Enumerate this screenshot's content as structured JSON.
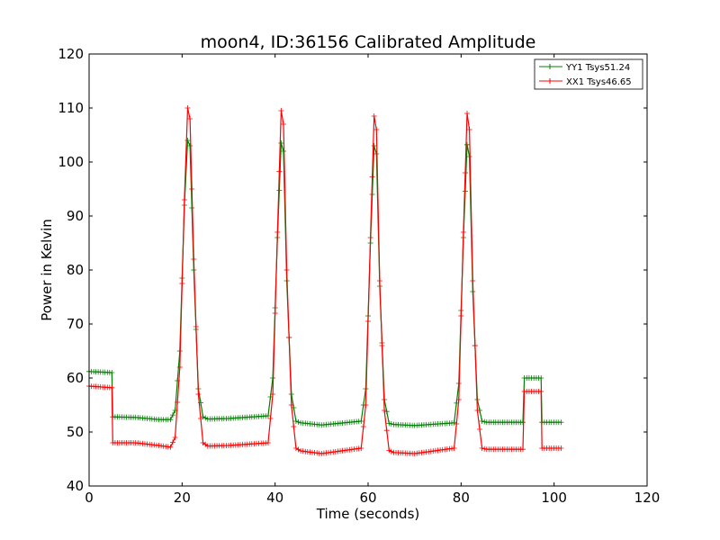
{
  "chart_data": {
    "type": "line",
    "title": "moon4, ID:36156 Calibrated Amplitude",
    "xlabel": "Time (seconds)",
    "ylabel": "Power in Kelvin",
    "xlim": [
      0,
      120
    ],
    "ylim": [
      40,
      120
    ],
    "xticks": [
      "0",
      "20",
      "40",
      "60",
      "80",
      "100",
      "120"
    ],
    "yticks": [
      "40",
      "50",
      "60",
      "70",
      "80",
      "90",
      "100",
      "110",
      "120"
    ],
    "grid": false,
    "legend": "top-right",
    "series": [
      {
        "name": "YY1 Tsys51.24",
        "color": "#008000",
        "x": [
          0,
          4.9,
          5.1,
          10,
          15,
          17.5,
          18.5,
          19.5,
          20.5,
          21.2,
          21.7,
          22.5,
          23.5,
          24.5,
          25.5,
          30,
          38.5,
          39.5,
          40.5,
          41.3,
          41.8,
          42.5,
          43.5,
          44.5,
          45.5,
          50,
          58.5,
          59.5,
          60.5,
          61.3,
          61.8,
          62.5,
          63.5,
          64.5,
          65.5,
          70,
          78.5,
          79.5,
          80.5,
          81.3,
          81.8,
          82.5,
          83.5,
          84.5,
          85.5,
          93.3,
          93.6,
          97.2,
          97.4,
          101.5
        ],
        "values": [
          61.2,
          61.0,
          52.8,
          52.7,
          52.3,
          52.3,
          54.0,
          65.0,
          92.0,
          104.0,
          103.0,
          80.0,
          58.0,
          52.8,
          52.4,
          52.5,
          53.0,
          60.0,
          86.0,
          103.5,
          102.0,
          78.0,
          57.0,
          52.0,
          51.7,
          51.3,
          52.0,
          58.0,
          85.0,
          103.0,
          101.5,
          77.0,
          56.0,
          51.6,
          51.4,
          51.2,
          51.7,
          59.0,
          86.0,
          103.2,
          101.0,
          76.0,
          56.0,
          52.0,
          51.8,
          51.8,
          60.0,
          60.0,
          51.8,
          51.8
        ]
      },
      {
        "name": "XX1 Tsys46.65",
        "color": "#ff0000",
        "x": [
          0,
          4.9,
          5.1,
          10,
          15,
          17.5,
          18.5,
          19.5,
          20.5,
          21.2,
          21.7,
          22.5,
          23.5,
          24.5,
          25.5,
          30,
          38.5,
          39.5,
          40.5,
          41.3,
          41.8,
          42.5,
          43.5,
          44.5,
          45.5,
          50,
          58.5,
          59.5,
          60.5,
          61.3,
          61.8,
          62.5,
          63.5,
          64.5,
          65.5,
          70,
          78.5,
          79.5,
          80.5,
          81.3,
          81.8,
          82.5,
          83.5,
          84.5,
          85.5,
          93.3,
          93.6,
          97.2,
          97.4,
          101.5
        ],
        "values": [
          58.5,
          58.2,
          48.0,
          48.0,
          47.5,
          47.2,
          49.0,
          62.0,
          93.0,
          110.0,
          108.0,
          82.0,
          57.0,
          48.0,
          47.4,
          47.5,
          48.0,
          57.0,
          87.0,
          109.5,
          107.0,
          80.0,
          55.0,
          47.0,
          46.5,
          46.0,
          47.0,
          55.0,
          86.0,
          108.5,
          106.0,
          78.0,
          54.0,
          46.6,
          46.2,
          46.0,
          47.0,
          56.0,
          87.0,
          109.0,
          106.0,
          78.0,
          54.0,
          47.0,
          46.8,
          46.8,
          57.5,
          57.5,
          47.0,
          47.0
        ]
      }
    ]
  }
}
